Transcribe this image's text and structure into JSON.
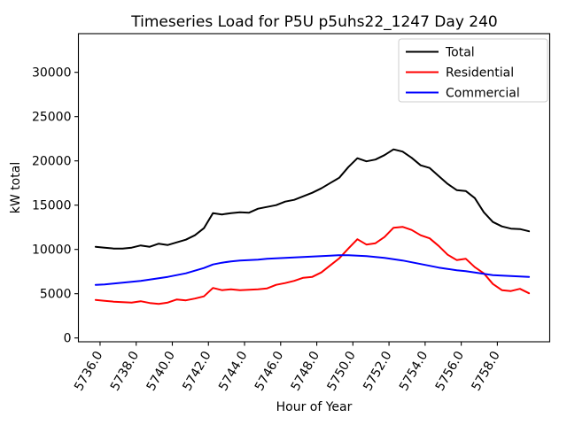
{
  "chart_data": {
    "type": "line",
    "title": "Timeseries Load for P5U p5uhs22_1247  Day 240",
    "xlabel": "Hour of Year",
    "ylabel": "kW total",
    "grid": false,
    "legend_position": "upper right",
    "xlim": [
      5734.8,
      5760.9
    ],
    "ylim": [
      -430,
      34370
    ],
    "x_tick_values": [
      5736,
      5738,
      5740,
      5742,
      5744,
      5746,
      5748,
      5750,
      5752,
      5754,
      5756,
      5758
    ],
    "x_tick_labels": [
      "5736.0",
      "5738.0",
      "5740.0",
      "5742.0",
      "5744.0",
      "5746.0",
      "5748.0",
      "5750.0",
      "5752.0",
      "5754.0",
      "5756.0",
      "5758.0"
    ],
    "y_tick_values": [
      0,
      5000,
      10000,
      15000,
      20000,
      25000,
      30000
    ],
    "y_tick_labels": [
      "0",
      "5000",
      "10000",
      "15000",
      "20000",
      "25000",
      "30000"
    ],
    "x": [
      5735.75,
      5736.25,
      5736.75,
      5737.25,
      5737.75,
      5738.25,
      5738.75,
      5739.25,
      5739.75,
      5740.25,
      5740.75,
      5741.25,
      5741.75,
      5742.25,
      5742.75,
      5743.25,
      5743.75,
      5744.25,
      5744.75,
      5745.25,
      5745.75,
      5746.25,
      5746.75,
      5747.25,
      5747.75,
      5748.25,
      5748.75,
      5749.25,
      5749.75,
      5750.25,
      5750.75,
      5751.25,
      5751.75,
      5752.25,
      5752.75,
      5753.25,
      5753.75,
      5754.25,
      5754.75,
      5755.25,
      5755.75,
      5756.25,
      5756.75,
      5757.25,
      5757.75,
      5758.25,
      5758.75,
      5759.25,
      5759.75
    ],
    "series": [
      {
        "name": "Total",
        "color": "#000000",
        "values": [
          10300,
          10200,
          10100,
          10100,
          10200,
          10450,
          10300,
          10650,
          10500,
          10800,
          11100,
          11600,
          12400,
          14100,
          13950,
          14100,
          14200,
          14150,
          14600,
          14800,
          15000,
          15400,
          15600,
          16000,
          16400,
          16900,
          17500,
          18100,
          19300,
          20300,
          19950,
          20150,
          20650,
          21300,
          21050,
          20350,
          19500,
          19200,
          18300,
          17400,
          16700,
          16600,
          15800,
          14200,
          13100,
          12600,
          12350,
          12300,
          12050
        ]
      },
      {
        "name": "Residential",
        "color": "#ff0000",
        "values": [
          4300,
          4200,
          4100,
          4050,
          4000,
          4150,
          3950,
          3850,
          4000,
          4350,
          4250,
          4450,
          4700,
          5650,
          5400,
          5500,
          5400,
          5450,
          5500,
          5600,
          6000,
          6200,
          6450,
          6800,
          6900,
          7400,
          8200,
          9000,
          10100,
          11150,
          10550,
          10700,
          11400,
          12450,
          12550,
          12200,
          11600,
          11250,
          10400,
          9400,
          8800,
          8950,
          8000,
          7300,
          6100,
          5400,
          5300,
          5550,
          5050
        ]
      },
      {
        "name": "Commercial",
        "color": "#0000ff",
        "values": [
          6000,
          6050,
          6150,
          6250,
          6350,
          6450,
          6600,
          6750,
          6900,
          7100,
          7300,
          7600,
          7900,
          8300,
          8500,
          8650,
          8750,
          8800,
          8850,
          8950,
          9000,
          9050,
          9100,
          9150,
          9200,
          9250,
          9300,
          9350,
          9350,
          9300,
          9250,
          9150,
          9050,
          8900,
          8750,
          8550,
          8350,
          8150,
          7950,
          7800,
          7650,
          7550,
          7400,
          7250,
          7100,
          7050,
          7000,
          6950,
          6900
        ]
      }
    ]
  }
}
